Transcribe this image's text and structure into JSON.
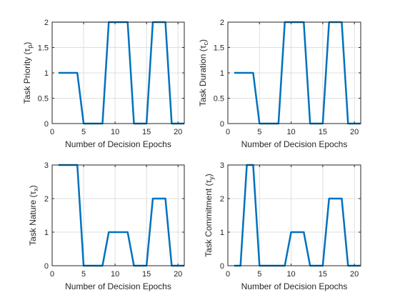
{
  "chart_data": [
    {
      "type": "line",
      "xlabel": "Number of Decision Epochs",
      "ylabel": "Task Priority (τ",
      "ylabel_sub": "p",
      "xlim": [
        0,
        21
      ],
      "ylim": [
        0,
        2
      ],
      "xticks": [
        0,
        5,
        10,
        15,
        20
      ],
      "yticks": [
        0,
        0.5,
        1,
        1.5,
        2
      ],
      "ytick_labels": [
        "0",
        "0.5",
        "1",
        "1.5",
        "2"
      ],
      "grid": true,
      "color": "#0072bd",
      "x": [
        1,
        2,
        3,
        4,
        5,
        6,
        7,
        8,
        9,
        10,
        11,
        12,
        13,
        14,
        15,
        16,
        17,
        18,
        19,
        20,
        21
      ],
      "y": [
        1,
        1,
        1,
        1,
        0,
        0,
        0,
        0,
        2,
        2,
        2,
        2,
        0,
        0,
        0,
        2,
        2,
        2,
        0,
        0,
        0
      ]
    },
    {
      "type": "line",
      "xlabel": "Number of Decision Epochs",
      "ylabel": "Task Duration (τ",
      "ylabel_sub": "c",
      "xlim": [
        0,
        21
      ],
      "ylim": [
        0,
        2
      ],
      "xticks": [
        0,
        5,
        10,
        15,
        20
      ],
      "yticks": [
        0,
        0.5,
        1,
        1.5,
        2
      ],
      "ytick_labels": [
        "0",
        "0.5",
        "1",
        "1.5",
        "2"
      ],
      "grid": true,
      "color": "#0072bd",
      "x": [
        1,
        2,
        3,
        4,
        5,
        6,
        7,
        8,
        9,
        10,
        11,
        12,
        13,
        14,
        15,
        16,
        17,
        18,
        19,
        20,
        21
      ],
      "y": [
        1,
        1,
        1,
        1,
        0,
        0,
        0,
        0,
        2,
        2,
        2,
        2,
        0,
        0,
        0,
        2,
        2,
        2,
        0,
        0,
        0
      ]
    },
    {
      "type": "line",
      "xlabel": "Number of Decision Epochs",
      "ylabel": "Task Nature (τ",
      "ylabel_sub": "x",
      "xlim": [
        0,
        21
      ],
      "ylim": [
        0,
        3
      ],
      "xticks": [
        0,
        5,
        10,
        15,
        20
      ],
      "yticks": [
        0,
        1,
        2,
        3
      ],
      "ytick_labels": [
        "0",
        "1",
        "2",
        "3"
      ],
      "grid": true,
      "color": "#0072bd",
      "x": [
        1,
        2,
        3,
        4,
        5,
        6,
        7,
        8,
        9,
        10,
        11,
        12,
        13,
        14,
        15,
        16,
        17,
        18,
        19,
        20,
        21
      ],
      "y": [
        3,
        3,
        3,
        3,
        0,
        0,
        0,
        0,
        1,
        1,
        1,
        1,
        0,
        0,
        0,
        2,
        2,
        2,
        0,
        0,
        0
      ]
    },
    {
      "type": "line",
      "xlabel": "Number of Decision Epochs",
      "ylabel": "Task Commitment (τ",
      "ylabel_sub": "y",
      "xlim": [
        0,
        21
      ],
      "ylim": [
        0,
        3
      ],
      "xticks": [
        0,
        5,
        10,
        15,
        20
      ],
      "yticks": [
        0,
        1,
        2,
        3
      ],
      "ytick_labels": [
        "0",
        "1",
        "2",
        "3"
      ],
      "grid": true,
      "color": "#0072bd",
      "x": [
        1,
        2,
        3,
        4,
        5,
        6,
        7,
        8,
        9,
        10,
        11,
        12,
        13,
        14,
        15,
        16,
        17,
        18,
        19,
        20,
        21
      ],
      "y": [
        0,
        0,
        3,
        3,
        0,
        0,
        0,
        0,
        0,
        1,
        1,
        1,
        0,
        0,
        0,
        2,
        2,
        2,
        0,
        0,
        0
      ]
    }
  ]
}
